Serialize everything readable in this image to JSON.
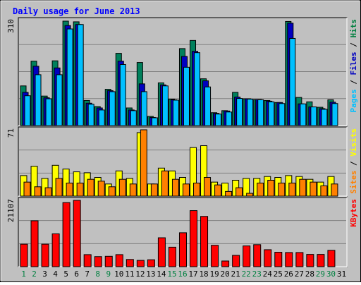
{
  "chart_data": {
    "type": "bar",
    "title": "Daily usage for June 2013",
    "categories": [
      "1",
      "2",
      "3",
      "4",
      "5",
      "6",
      "7",
      "8",
      "9",
      "10",
      "11",
      "12",
      "13",
      "14",
      "15",
      "16",
      "17",
      "18",
      "19",
      "20",
      "21",
      "22",
      "23",
      "24",
      "25",
      "26",
      "27",
      "28",
      "29",
      "30",
      "31"
    ],
    "weekend_days": [
      "1",
      "2",
      "8",
      "9",
      "15",
      "16",
      "22",
      "23",
      "29",
      "30"
    ],
    "panels": [
      {
        "id": "hits-files-pages",
        "ymax_label": "310",
        "ylim": [
          0,
          310
        ],
        "right_label_parts": [
          {
            "text": "Pages",
            "color": "#00C0FF"
          },
          {
            "text": " / ",
            "color": "#000000"
          },
          {
            "text": "Files",
            "color": "#0000C0"
          },
          {
            "text": " / ",
            "color": "#000000"
          },
          {
            "text": "Hits",
            "color": "#008040"
          }
        ],
        "series": [
          {
            "name": "Hits",
            "color": "#00805C",
            "values": [
              117,
              190,
              87,
              191,
              308,
              306,
              74,
              56,
              107,
              213,
              52,
              186,
              27,
              126,
              78,
              227,
              251,
              138,
              38,
              44,
              98,
              79,
              77,
              74,
              68,
              307,
              83,
              70,
              54,
              76,
              0
            ]
          },
          {
            "name": "Files",
            "color": "#0000C0",
            "values": [
              98,
              175,
              82,
              170,
              295,
              298,
              66,
              52,
              103,
              190,
              46,
              123,
              24,
              120,
              76,
              204,
              219,
              132,
              36,
              43,
              84,
              79,
              77,
              72,
              68,
              302,
              64,
              55,
              50,
              69,
              0
            ]
          },
          {
            "name": "Pages",
            "color": "#00C0FF",
            "values": [
              88,
              150,
              79,
              150,
              285,
              298,
              63,
              46,
              100,
              180,
              44,
              100,
              23,
              117,
              75,
              172,
              215,
              114,
              34,
              40,
              80,
              78,
              76,
              70,
              65,
              257,
              64,
              55,
              48,
              65,
              0
            ]
          }
        ]
      },
      {
        "id": "sites-visits",
        "ymax_label": "71",
        "ylim": [
          0,
          71
        ],
        "right_label_parts": [
          {
            "text": "Sites",
            "color": "#FF8000"
          },
          {
            "text": " / ",
            "color": "#000000"
          },
          {
            "text": "Visits",
            "color": "#FFFF00"
          }
        ],
        "series": [
          {
            "name": "Visits",
            "color": "#FFFF00",
            "values": [
              22,
              32,
              19,
              33,
              29,
              26,
              25,
              20,
              13,
              27,
              19,
              68,
              13,
              30,
              27,
              20,
              52,
              54,
              15,
              14,
              17,
              19,
              19,
              21,
              20,
              22,
              21,
              18,
              15,
              21,
              0
            ]
          },
          {
            "name": "Sites",
            "color": "#FF8000",
            "values": [
              15,
              10,
              9,
              19,
              14,
              14,
              18,
              16,
              10,
              18,
              13,
              71,
              13,
              27,
              18,
              13,
              14,
              20,
              12,
              5,
              9,
              3,
              14,
              17,
              14,
              14,
              18,
              15,
              11,
              13,
              0
            ]
          }
        ]
      },
      {
        "id": "kbytes",
        "ymax_label": "21107",
        "ylim": [
          0,
          21107
        ],
        "right_label_parts": [
          {
            "text": "KBytes",
            "color": "#FF0000"
          }
        ],
        "series": [
          {
            "name": "KBytes",
            "color": "#FF0000",
            "values": [
              7160,
              14608,
              7160,
              10453,
              20400,
              21107,
              3836,
              3200,
              3300,
              3836,
              2290,
              2000,
              2200,
              9200,
              6200,
              10800,
              17840,
              16000,
              6800,
              1800,
              3600,
              6600,
              7000,
              5400,
              4600,
              4500,
              4500,
              3900,
              3900,
              5200,
              0
            ]
          }
        ]
      }
    ]
  }
}
